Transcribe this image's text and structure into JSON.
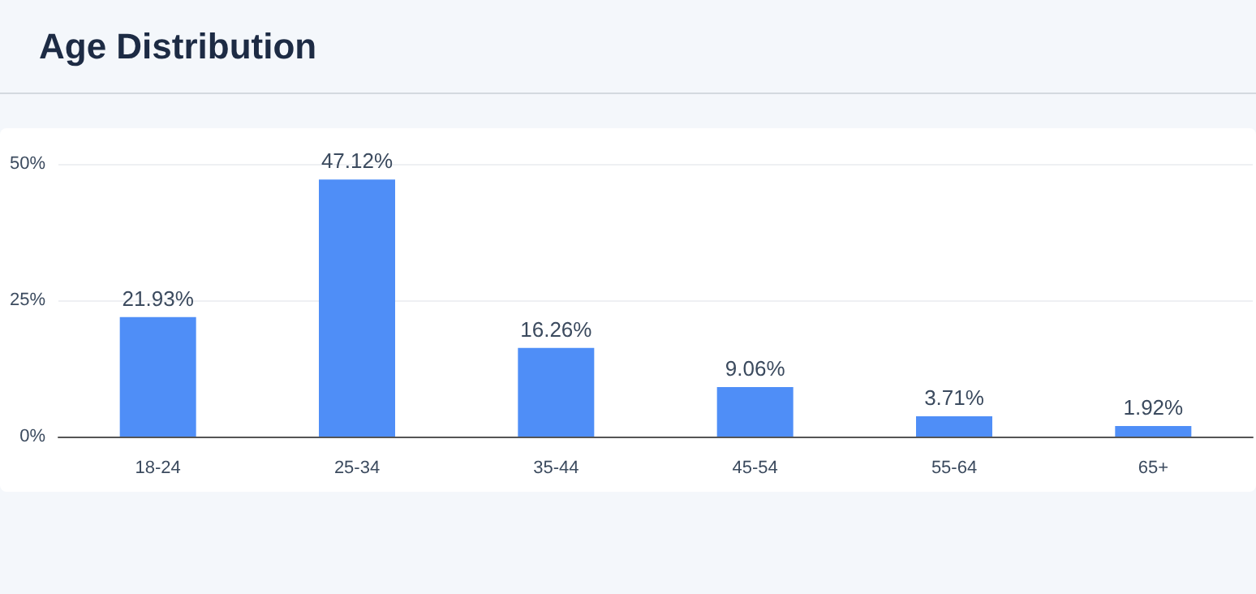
{
  "chart_data": {
    "type": "bar",
    "title": "Age Distribution",
    "categories": [
      "18-24",
      "25-34",
      "35-44",
      "45-54",
      "55-64",
      "65+"
    ],
    "values": [
      21.93,
      47.12,
      16.26,
      9.06,
      3.71,
      1.92
    ],
    "value_labels": [
      "21.93%",
      "47.12%",
      "16.26%",
      "9.06%",
      "3.71%",
      "1.92%"
    ],
    "color": "#4f8ef7",
    "ylim": [
      0,
      50
    ],
    "yticks": [
      {
        "value": 0,
        "label": "0%"
      },
      {
        "value": 25,
        "label": "25%"
      },
      {
        "value": 50,
        "label": "50%"
      }
    ],
    "grid": "y"
  }
}
